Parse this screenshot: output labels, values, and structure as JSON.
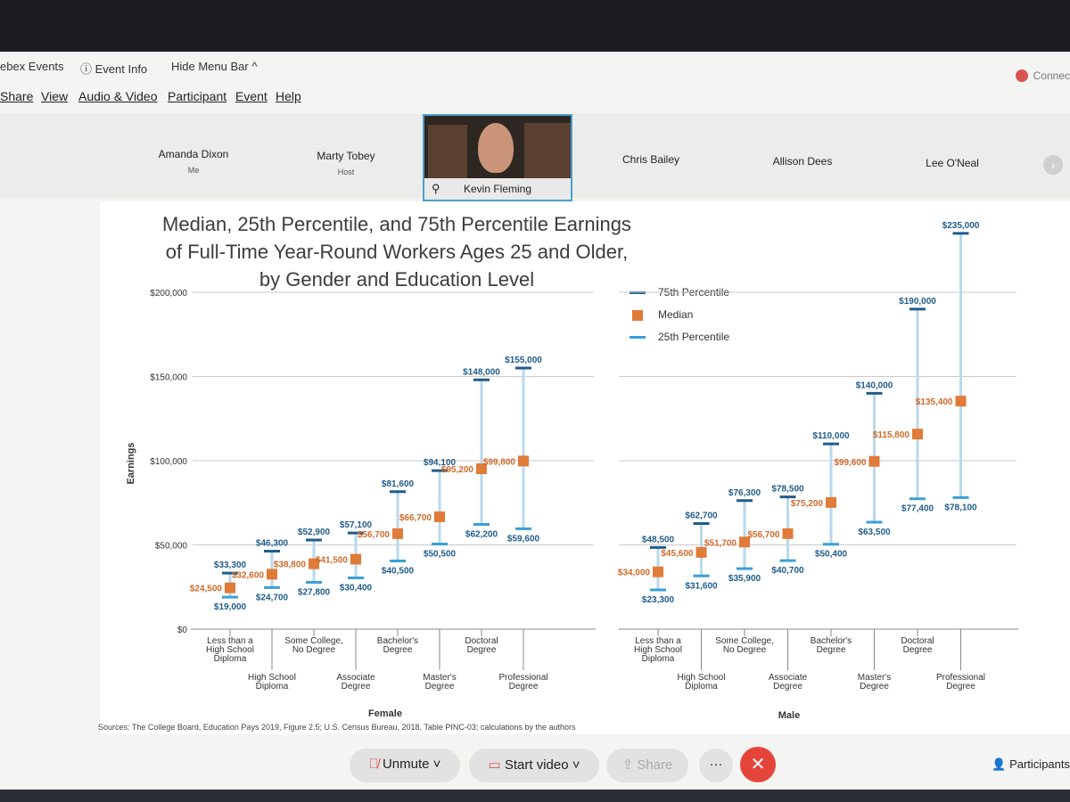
{
  "app": {
    "menu_top": {
      "events": "ebex Events",
      "event_info": "Event Info",
      "hide_menu": "Hide Menu Bar ^"
    },
    "menu": {
      "share": "Share",
      "view": "View",
      "audio_video": "Audio & Video",
      "participant": "Participant",
      "event": "Event",
      "help": "Help"
    },
    "connect": "Connec",
    "participants_strip": [
      {
        "name": "Amanda Dixon",
        "role": "Me"
      },
      {
        "name": "Marty Tobey",
        "role": "Host"
      },
      {
        "name": "Chris Bailey",
        "role": ""
      },
      {
        "name": "Allison Dees",
        "role": ""
      },
      {
        "name": "Lee O'Neal",
        "role": ""
      }
    ],
    "active_speaker": "Kevin Fleming",
    "controls": {
      "unmute": "Unmute",
      "start_video": "Start video",
      "share": "Share",
      "participants": "Participants"
    }
  },
  "slide": {
    "title_lines": [
      "Median, 25th Percentile, and 75th Percentile Earnings",
      "of Full-Time Year-Round Workers Ages 25 and Older,",
      "by Gender and Education Level"
    ],
    "sources": "Sources: The College Board, Education Pays 2019, Figure 2.5; U.S. Census Bureau, 2018, Table PINC-03; calculations by the authors"
  },
  "chart_data": {
    "type": "range-bar",
    "ylabel": "Earnings",
    "ylim": [
      0,
      235000
    ],
    "yticks": [
      0,
      50000,
      100000,
      150000,
      200000
    ],
    "ytick_labels": [
      "$0",
      "$50,000",
      "$100,000",
      "$150,000",
      "$200,000"
    ],
    "legend": [
      "75th Percentile",
      "Median",
      "25th Percentile"
    ],
    "colors": {
      "p75": "#1f5c8a",
      "median": "#e07b39",
      "p25": "#3aa0d6",
      "whisker": "#b9d8ec",
      "label": "#1f5c8a",
      "median_label": "#d06a2a"
    },
    "panels": [
      {
        "name": "Female",
        "categories": [
          "Less than a High School Diploma",
          "High School Diploma",
          "Some College, No Degree",
          "Associate Degree",
          "Bachelor's Degree",
          "Master's Degree",
          "Doctoral Degree",
          "Professional Degree"
        ],
        "p25": [
          19000,
          24700,
          27800,
          30400,
          40500,
          50500,
          62200,
          59600
        ],
        "median": [
          24500,
          32600,
          38800,
          41500,
          56700,
          66700,
          95200,
          99800
        ],
        "p75": [
          33300,
          46300,
          52900,
          57100,
          81600,
          94100,
          148000,
          155000
        ],
        "p25_labels": [
          "$19,000",
          "$24,700",
          "$27,800",
          "$30,400",
          "$40,500",
          "$50,500",
          "$62,200",
          "$59,600"
        ],
        "median_labels": [
          "$24,500",
          "$32,600",
          "$38,800",
          "$41,500",
          "$56,700",
          "$66,700",
          "$95,200",
          "$99,800"
        ],
        "p75_labels": [
          "$33,300",
          "$46,300",
          "$52,900",
          "$57,100",
          "$81,600",
          "$94,100",
          "$148,000",
          "$155,000"
        ]
      },
      {
        "name": "Male",
        "categories": [
          "Less than a High School Diploma",
          "High School Diploma",
          "Some College, No Degree",
          "Associate Degree",
          "Bachelor's Degree",
          "Master's Degree",
          "Doctoral Degree",
          "Professional Degree"
        ],
        "p25": [
          23300,
          31600,
          35900,
          40700,
          50400,
          63500,
          77400,
          78100
        ],
        "median": [
          34000,
          45600,
          51700,
          56700,
          75200,
          99600,
          115800,
          135400
        ],
        "p75": [
          48500,
          62700,
          76300,
          78500,
          110000,
          140000,
          190000,
          235000
        ],
        "p25_labels": [
          "$23,300",
          "$31,600",
          "$35,900",
          "$40,700",
          "$50,400",
          "$63,500",
          "$77,400",
          "$78,100"
        ],
        "median_labels": [
          "$34,000",
          "$45,600",
          "$51,700",
          "$56,700",
          "$75,200",
          "$99,600",
          "$115,800",
          "$135,400"
        ],
        "p75_labels": [
          "$48,500",
          "$62,700",
          "$76,300",
          "$78,500",
          "$110,000",
          "$140,000",
          "$190,000",
          "$235,000"
        ]
      }
    ],
    "category_display": [
      [
        "Less than a",
        "High School",
        "Diploma"
      ],
      [
        "High School",
        "Diploma"
      ],
      [
        "Some College,",
        "No Degree"
      ],
      [
        "Associate",
        "Degree"
      ],
      [
        "Bachelor's",
        "Degree"
      ],
      [
        "Master's",
        "Degree"
      ],
      [
        "Doctoral",
        "Degree"
      ],
      [
        "Professional",
        "Degree"
      ]
    ]
  }
}
